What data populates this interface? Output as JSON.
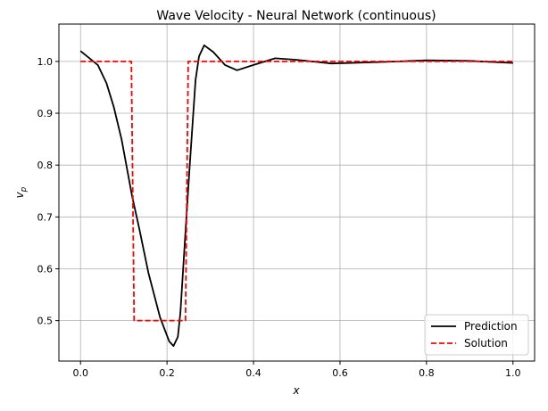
{
  "chart_data": {
    "type": "line",
    "title": "Wave Velocity - Neural Network (continuous)",
    "xlabel": "x",
    "ylabel": "v_p",
    "ylabel_main": "v",
    "ylabel_sub": "p",
    "xlim": [
      -0.05,
      1.05
    ],
    "ylim": [
      0.422,
      1.072
    ],
    "xticks": [
      0.0,
      0.2,
      0.4,
      0.6,
      0.8,
      1.0
    ],
    "xtick_labels": [
      "0.0",
      "0.2",
      "0.4",
      "0.6",
      "0.8",
      "1.0"
    ],
    "yticks": [
      0.5,
      0.6,
      0.7,
      0.8,
      0.9,
      1.0
    ],
    "ytick_labels": [
      "0.5",
      "0.6",
      "0.7",
      "0.8",
      "0.9",
      "1.0"
    ],
    "grid": true,
    "legend_position": "bottom-right",
    "series": [
      {
        "name": "Prediction",
        "color": "#000000",
        "style": "solid",
        "x": [
          0,
          0.04,
          0.06,
          0.077,
          0.095,
          0.119,
          0.136,
          0.157,
          0.184,
          0.205,
          0.215,
          0.225,
          0.231,
          0.241,
          0.252,
          0.266,
          0.274,
          0.286,
          0.307,
          0.334,
          0.362,
          0.4,
          0.45,
          0.5,
          0.58,
          0.7,
          0.8,
          0.9,
          1.0
        ],
        "y": [
          1.02,
          0.993,
          0.958,
          0.912,
          0.849,
          0.741,
          0.677,
          0.592,
          0.506,
          0.46,
          0.451,
          0.469,
          0.517,
          0.649,
          0.792,
          0.964,
          1.01,
          1.031,
          1.018,
          0.993,
          0.983,
          0.993,
          1.006,
          1.003,
          0.996,
          0.999,
          1.002,
          1.001,
          0.997
        ]
      },
      {
        "name": "Solution",
        "color": "#ff0000",
        "style": "dashed",
        "x": [
          0,
          0.1175,
          0.124,
          0.2426,
          0.249,
          1.0
        ],
        "y": [
          1.0,
          1.0,
          0.5,
          0.5,
          1.0,
          1.0
        ]
      }
    ]
  }
}
